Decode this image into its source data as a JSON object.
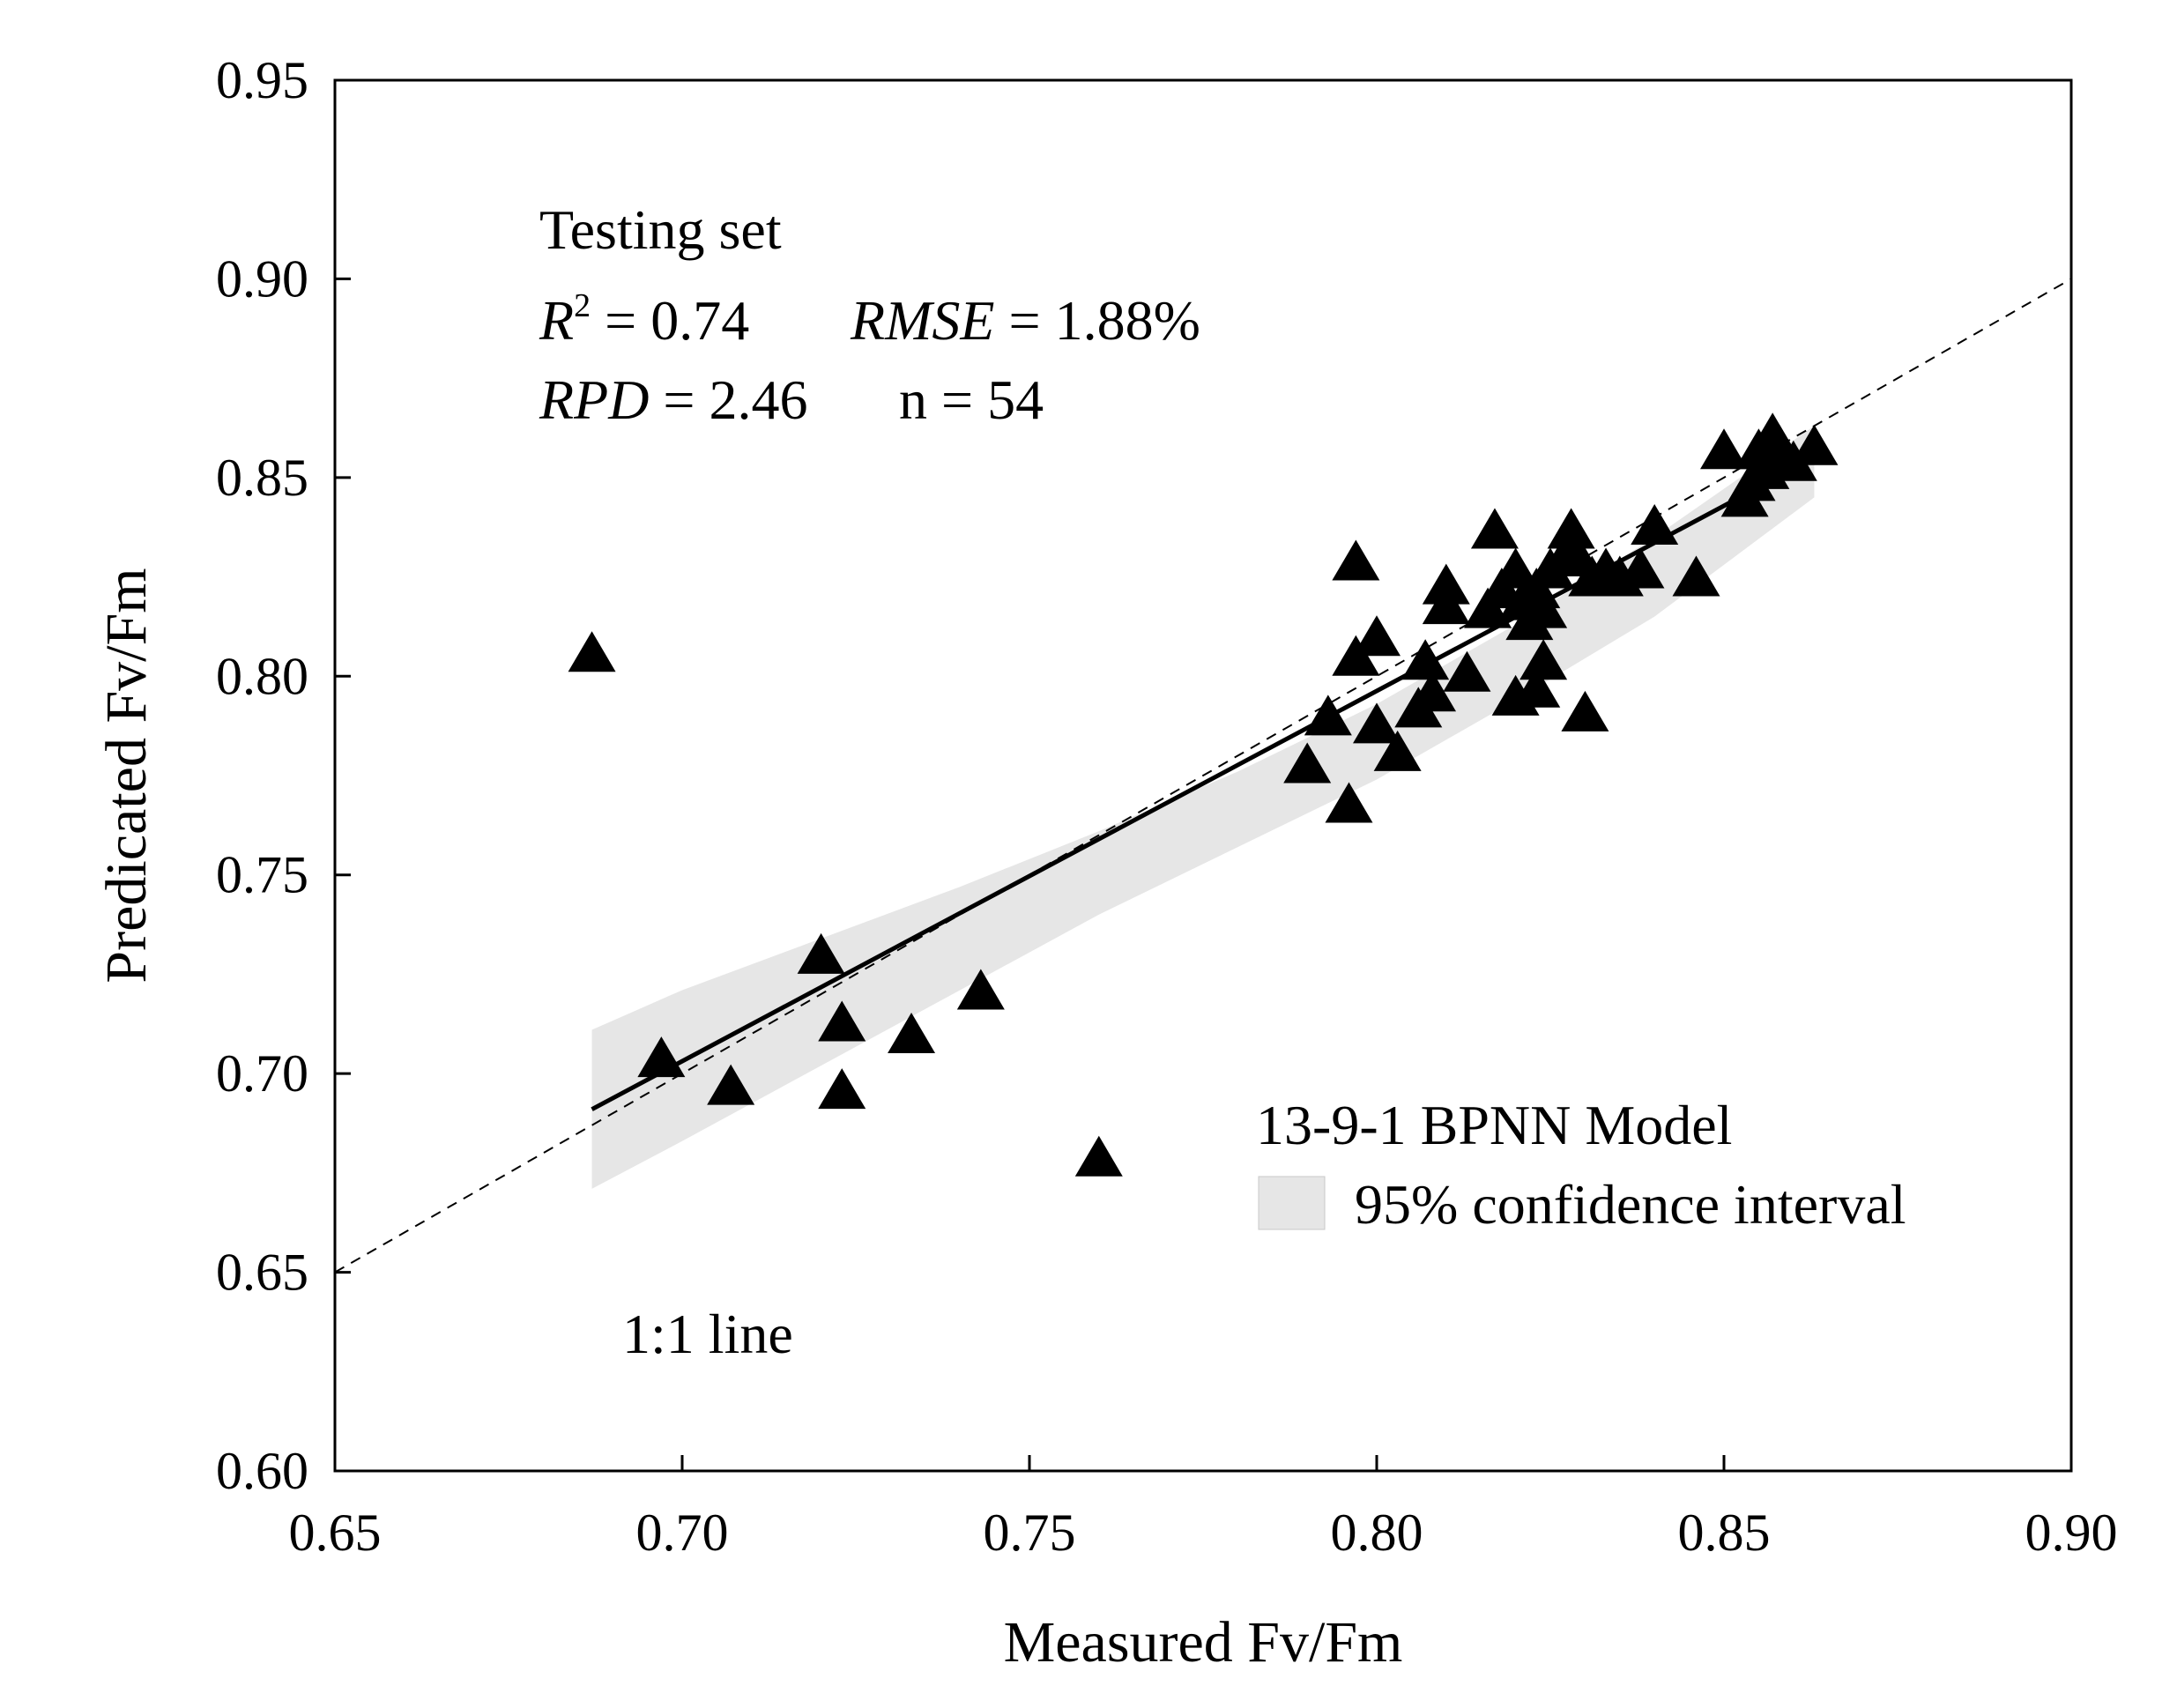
{
  "chart_data": {
    "type": "scatter",
    "title": "",
    "xlabel": "Measured Fv/Fm",
    "ylabel": "Predicated Fv/Fm",
    "xlim": [
      0.65,
      0.9
    ],
    "ylim": [
      0.6,
      0.95
    ],
    "xticks": [
      "0.65",
      "0.70",
      "0.75",
      "0.80",
      "0.85",
      "0.90"
    ],
    "yticks": [
      "0.60",
      "0.65",
      "0.70",
      "0.75",
      "0.80",
      "0.85",
      "0.90",
      "0.95"
    ],
    "grid": false,
    "annotations": {
      "set_label": "Testing set",
      "r2_symbol": "R",
      "r2_sup": "2",
      "r2_value": " = 0.74",
      "rmse_symbol": "RMSE",
      "rmse_value": " = 1.88%",
      "rpd_symbol": "RPD",
      "rpd_value": " = 2.46",
      "n_text": "n = 54",
      "one_to_one_label": "1:1 line"
    },
    "legend": {
      "position": "lower-right",
      "model_label": "13-9-1 BPNN Model",
      "ci_label": "95% confidence interval"
    },
    "colors": {
      "points": "#000000",
      "fit_line": "#000000",
      "ci_band": "#e6e6e6",
      "one_to_one": "#000000"
    },
    "fit_line": {
      "x": [
        0.687,
        0.863
      ],
      "y": [
        0.691,
        0.855
      ]
    },
    "ci_band": {
      "x": [
        0.687,
        0.7,
        0.72,
        0.74,
        0.76,
        0.78,
        0.8,
        0.82,
        0.84,
        0.863
      ],
      "upper": [
        0.711,
        0.721,
        0.734,
        0.747,
        0.761,
        0.776,
        0.793,
        0.813,
        0.835,
        0.863
      ],
      "lower": [
        0.671,
        0.683,
        0.702,
        0.721,
        0.74,
        0.757,
        0.774,
        0.794,
        0.815,
        0.845
      ]
    },
    "series": [
      {
        "name": "Testing set",
        "marker": "triangle",
        "x": [
          0.687,
          0.697,
          0.707,
          0.72,
          0.723,
          0.723,
          0.733,
          0.743,
          0.76,
          0.79,
          0.793,
          0.796,
          0.797,
          0.797,
          0.8,
          0.8,
          0.803,
          0.806,
          0.807,
          0.808,
          0.81,
          0.81,
          0.813,
          0.816,
          0.817,
          0.818,
          0.82,
          0.82,
          0.821,
          0.822,
          0.823,
          0.823,
          0.824,
          0.824,
          0.825,
          0.827,
          0.828,
          0.829,
          0.83,
          0.831,
          0.833,
          0.835,
          0.838,
          0.84,
          0.846,
          0.85,
          0.853,
          0.854,
          0.855,
          0.856,
          0.857,
          0.858,
          0.86,
          0.863
        ],
        "y": [
          0.805,
          0.703,
          0.696,
          0.729,
          0.712,
          0.695,
          0.709,
          0.72,
          0.678,
          0.777,
          0.789,
          0.767,
          0.804,
          0.828,
          0.809,
          0.787,
          0.78,
          0.791,
          0.803,
          0.795,
          0.817,
          0.822,
          0.8,
          0.816,
          0.836,
          0.821,
          0.794,
          0.826,
          0.818,
          0.813,
          0.796,
          0.821,
          0.803,
          0.816,
          0.826,
          0.829,
          0.836,
          0.829,
          0.79,
          0.824,
          0.826,
          0.824,
          0.826,
          0.837,
          0.824,
          0.856,
          0.844,
          0.848,
          0.856,
          0.851,
          0.86,
          0.857,
          0.853,
          0.857
        ]
      }
    ]
  }
}
